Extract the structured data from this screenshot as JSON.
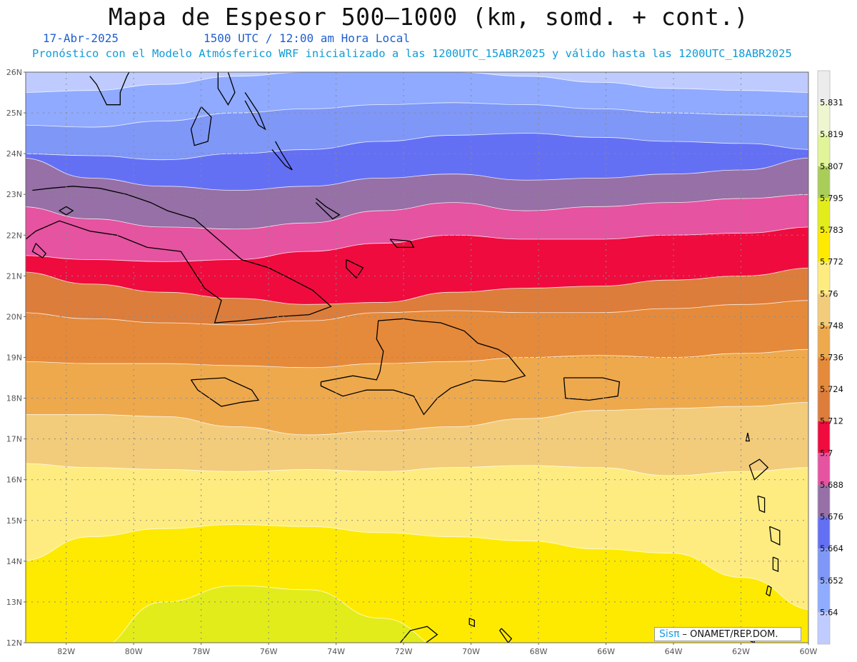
{
  "header": {
    "title": "Mapa de Espesor 500—1000 (km, somd. + cont.)",
    "date": "17-Abr-2025",
    "time": "1500 UTC / 12:00 am Hora Local",
    "model_line": "Pronóstico con el Modelo Atmósferico WRF inicializado a las 1200UTC_15ABR2025 y válido hasta las  1200UTC_18ABR2025"
  },
  "map": {
    "lat_labels": [
      "26N",
      "25N",
      "24N",
      "23N",
      "22N",
      "21N",
      "20N",
      "19N",
      "18N",
      "17N",
      "16N",
      "15N",
      "14N",
      "13N",
      "12N"
    ],
    "lon_labels": [
      "82W",
      "80W",
      "78W",
      "76W",
      "74W",
      "72W",
      "70W",
      "68W",
      "66W",
      "64W",
      "62W",
      "60W"
    ],
    "lat_range": [
      12,
      26
    ],
    "lon_range": [
      -83.2,
      -60
    ],
    "grid": true,
    "band_boundary_lats": [
      [
        25.5,
        25.55,
        25.7,
        25.9,
        26.0,
        26.05,
        26.0,
        25.9,
        25.75,
        25.6,
        25.55,
        25.5
      ],
      [
        24.7,
        24.65,
        24.8,
        25.0,
        25.1,
        25.2,
        25.25,
        25.2,
        25.1,
        25.0,
        24.95,
        24.9
      ],
      [
        24.0,
        23.95,
        23.85,
        24.0,
        24.1,
        24.3,
        24.45,
        24.5,
        24.4,
        24.3,
        24.25,
        24.1
      ],
      [
        23.9,
        23.4,
        23.2,
        23.1,
        23.2,
        23.4,
        23.5,
        23.35,
        23.4,
        23.5,
        23.6,
        23.9
      ],
      [
        22.7,
        22.4,
        22.2,
        22.15,
        22.3,
        22.6,
        22.8,
        22.6,
        22.7,
        22.8,
        22.9,
        23.0
      ],
      [
        21.5,
        21.4,
        21.35,
        21.4,
        21.6,
        21.8,
        22.0,
        21.9,
        21.9,
        22.0,
        22.05,
        22.2
      ],
      [
        21.1,
        20.8,
        20.6,
        20.45,
        20.3,
        20.35,
        20.6,
        20.7,
        20.75,
        20.9,
        21.0,
        21.2
      ],
      [
        20.1,
        19.95,
        19.85,
        19.8,
        19.9,
        20.1,
        20.15,
        20.1,
        20.1,
        20.2,
        20.3,
        20.4
      ],
      [
        18.9,
        18.85,
        18.85,
        18.8,
        18.75,
        18.85,
        18.9,
        19.0,
        19.05,
        19.0,
        19.1,
        19.2
      ],
      [
        17.6,
        17.6,
        17.55,
        17.3,
        17.1,
        17.2,
        17.3,
        17.5,
        17.7,
        17.75,
        17.8,
        17.9
      ],
      [
        16.4,
        16.3,
        16.25,
        16.2,
        16.25,
        16.2,
        16.3,
        16.35,
        16.3,
        16.1,
        16.2,
        16.3
      ],
      [
        14.0,
        14.6,
        14.8,
        14.9,
        14.85,
        14.7,
        14.6,
        14.5,
        14.3,
        14.2,
        13.6,
        12.8
      ],
      [
        11.8,
        11.8,
        13.0,
        13.4,
        13.3,
        12.6,
        11.8,
        11.8,
        11.8,
        11.8,
        11.8,
        11.8
      ]
    ],
    "band_colors": [
      "#bfcbff",
      "#8faaff",
      "#7f97f6",
      "#6470f4",
      "#9670a6",
      "#e653a0",
      "#ef0b3e",
      "#dd7d3b",
      "#e58a3a",
      "#eea94d",
      "#f2cc7b",
      "#ffec80",
      "#feea00",
      "#e2ec1a"
    ]
  },
  "colorbar": {
    "labels": [
      "5.64",
      "5.652",
      "5.664",
      "5.676",
      "5.688",
      "5.7",
      "5.712",
      "5.724",
      "5.736",
      "5.748",
      "5.76",
      "5.772",
      "5.783",
      "5.795",
      "5.807",
      "5.819",
      "5.831"
    ],
    "colors": [
      "#c0ccff",
      "#90acff",
      "#7f97f6",
      "#6470f4",
      "#9670a6",
      "#e653a0",
      "#ef0b3e",
      "#dd7d3b",
      "#e58a3a",
      "#eea94d",
      "#f2cc7b",
      "#ffec80",
      "#feea00",
      "#e2ec1a",
      "#a9cd58",
      "#e2f49a",
      "#eef6cf",
      "#ececec"
    ]
  },
  "credit": {
    "logo": "Sisπ",
    "text": "– ONAMET/REP.DOM."
  }
}
